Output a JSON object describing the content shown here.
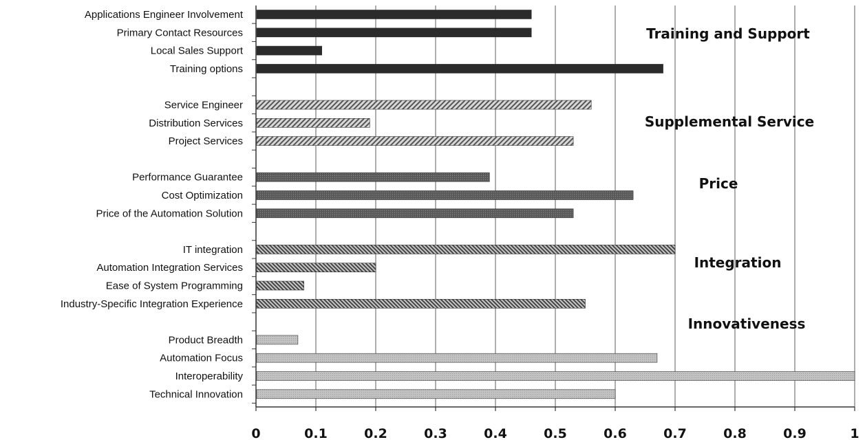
{
  "chart_data": {
    "type": "bar",
    "orientation": "horizontal",
    "title": "",
    "xlabel": "",
    "ylabel": "",
    "xlim": [
      0,
      1
    ],
    "x_ticks": [
      "0",
      "0.1",
      "0.2",
      "0.3",
      "0.4",
      "0.5",
      "0.6",
      "0.7",
      "0.8",
      "0.9",
      "1"
    ],
    "grid": "vertical",
    "groups": [
      {
        "name": "Training and Support",
        "pattern": "solid-dark",
        "color": "#2b2b2b",
        "categories": [
          "Applications Engineer Involvement",
          "Primary Contact Resources",
          "Local Sales Support",
          "Training options"
        ],
        "values": [
          0.46,
          0.46,
          0.11,
          0.68
        ]
      },
      {
        "name": "Supplemental Service",
        "pattern": "diagonal-hatch",
        "color": "#6a6a6a",
        "categories": [
          "Service Engineer",
          "Distribution Services",
          "Project Services"
        ],
        "values": [
          0.56,
          0.19,
          0.53
        ]
      },
      {
        "name": "Price",
        "pattern": "fine-dark",
        "color": "#4a4a4a",
        "categories": [
          "Performance Guarantee",
          "Cost Optimization",
          "Price of the Automation Solution"
        ],
        "values": [
          0.39,
          0.63,
          0.53
        ]
      },
      {
        "name": "Integration",
        "pattern": "dense-hatch",
        "color": "#555555",
        "categories": [
          "IT integration",
          "Automation Integration Services",
          "Ease of System Programming",
          "Industry-Specific Integration Experience"
        ],
        "values": [
          0.7,
          0.2,
          0.08,
          0.55
        ]
      },
      {
        "name": "Innovativeness",
        "pattern": "light-grey",
        "color": "#b0b0b0",
        "categories": [
          "Product Breadth",
          "Automation Focus",
          "Interoperability",
          "Technical Innovation"
        ],
        "values": [
          0.07,
          0.67,
          1.0,
          0.6
        ]
      }
    ]
  }
}
